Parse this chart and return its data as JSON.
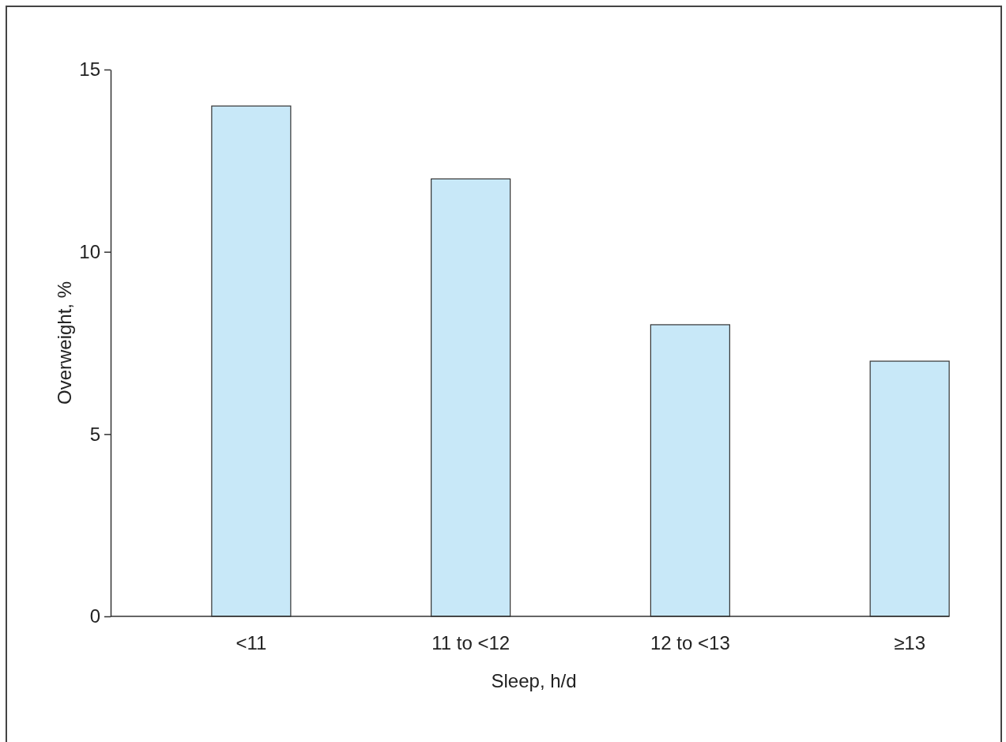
{
  "chart_data": {
    "type": "bar",
    "xlabel": "Sleep, h/d",
    "ylabel": "Overweight, %",
    "categories": [
      "<11",
      "11 to <12",
      "12 to <13",
      "≥13"
    ],
    "values": [
      14,
      12,
      8,
      7
    ],
    "color": "#c8e8f8",
    "ylim": [
      0,
      15
    ],
    "yticks": [
      0,
      5,
      10,
      15
    ],
    "grid": false
  }
}
